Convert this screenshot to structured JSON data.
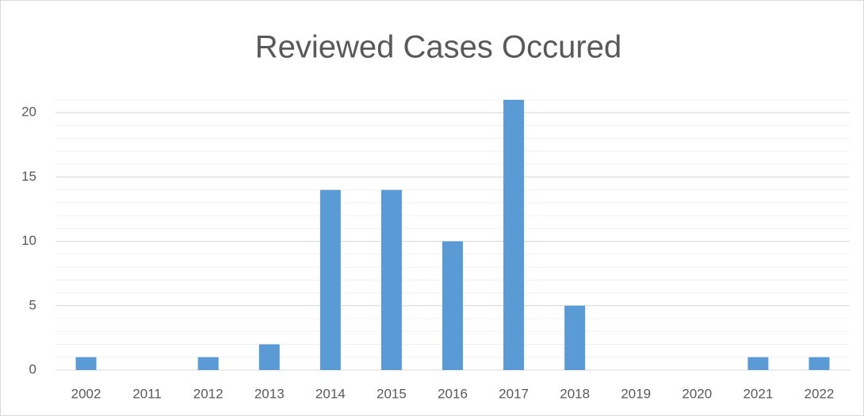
{
  "chart_data": {
    "type": "bar",
    "title": "Reviewed Cases Occured",
    "categories": [
      "2002",
      "2011",
      "2012",
      "2013",
      "2014",
      "2015",
      "2016",
      "2017",
      "2018",
      "2019",
      "2020",
      "2021",
      "2022"
    ],
    "values": [
      1,
      0,
      1,
      2,
      14,
      14,
      10,
      21,
      5,
      0,
      0,
      1,
      1
    ],
    "color": "#5b9bd5",
    "ylim": [
      0,
      21
    ],
    "yticks": [
      0,
      5,
      10,
      15,
      20
    ],
    "grid": true,
    "minor_grid": true
  }
}
